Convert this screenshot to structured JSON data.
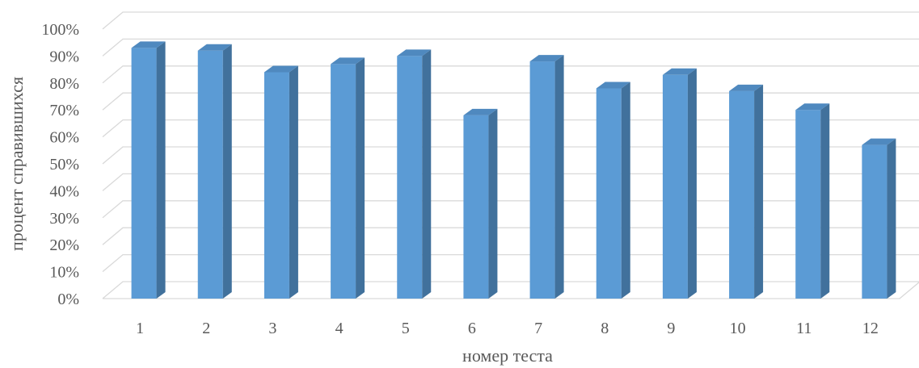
{
  "chart_data": {
    "type": "bar",
    "categories": [
      "1",
      "2",
      "3",
      "4",
      "5",
      "6",
      "7",
      "8",
      "9",
      "10",
      "11",
      "12"
    ],
    "values": [
      93,
      92,
      84,
      87,
      90,
      68,
      88,
      78,
      83,
      77,
      70,
      57
    ],
    "y_tick_labels": [
      "0%",
      "10%",
      "20%",
      "30%",
      "40%",
      "50%",
      "60%",
      "70%",
      "80%",
      "90%",
      "100%"
    ],
    "ylim": [
      0,
      100
    ],
    "ylabel": "процент справившихся",
    "xlabel": "номер теста",
    "grid": true,
    "legend": "none",
    "colors": {
      "bar": "#5b9bd5",
      "bar_side": "#41719c",
      "bar_top": "#4f89bf",
      "grid": "#d9d9d9",
      "text": "#595959"
    }
  }
}
